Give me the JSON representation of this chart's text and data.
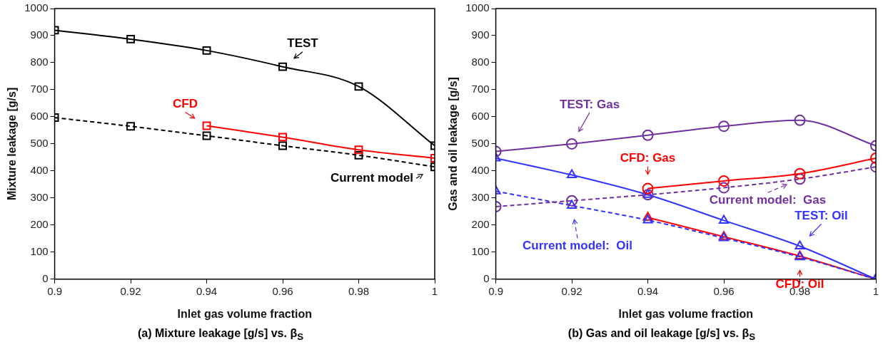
{
  "chart_data": [
    {
      "type": "line",
      "title": "(a) Mixture leakage [g/s] vs. β$_{S}$",
      "xlabel": "Inlet gas volume fraction",
      "ylabel": "Mixture leakage [g/s]",
      "xlim": [
        0.9,
        1
      ],
      "xticks": [
        0.9,
        0.92,
        0.94,
        0.96,
        0.98,
        1
      ],
      "ylim": [
        0,
        1000
      ],
      "yticks": [
        0,
        100,
        200,
        300,
        400,
        500,
        600,
        700,
        800,
        900,
        1000
      ],
      "grid": false,
      "legend": "right",
      "series": [
        {
          "name": "TEST",
          "color": "#000000",
          "x": [
            0.9,
            0.92,
            0.94,
            0.96,
            0.98,
            1
          ],
          "values": [
            920,
            887,
            845,
            785,
            712,
            493
          ],
          "marker": "square",
          "line_style": "solid"
        },
        {
          "name": "CFD",
          "color": "#ff0000",
          "x": [
            0.94,
            0.96,
            0.98,
            1
          ],
          "values": [
            567,
            525,
            478,
            447
          ],
          "marker": "square",
          "line_style": "solid"
        },
        {
          "name": "Current model",
          "color": "#000000",
          "x": [
            0.9,
            0.92,
            0.94,
            0.96,
            0.98,
            1
          ],
          "values": [
            597,
            565,
            530,
            493,
            458,
            415
          ],
          "marker": "square",
          "line_style": "dashed"
        }
      ]
    },
    {
      "type": "line",
      "title": "(b) Gas and oil leakage [g/s] vs. β$_{S}$",
      "xlabel": "Inlet gas volume fraction",
      "ylabel": "Gas and oil leakage [g/s]",
      "xlim": [
        0.9,
        1
      ],
      "xticks": [
        0.9,
        0.92,
        0.94,
        0.96,
        0.98,
        1
      ],
      "ylim": [
        0,
        1000
      ],
      "yticks": [
        0,
        100,
        200,
        300,
        400,
        500,
        600,
        700,
        800,
        900,
        1000
      ],
      "grid": false,
      "legend": "bottom right",
      "series": [
        {
          "name": "TEST: Gas",
          "color": "#7030a0",
          "x": [
            0.9,
            0.92,
            0.94,
            0.96,
            0.98,
            1
          ],
          "values": [
            472,
            500,
            532,
            565,
            587,
            493
          ],
          "marker": "circle",
          "line_style": "solid"
        },
        {
          "name": "CFD: Gas",
          "color": "#ff0000",
          "x": [
            0.94,
            0.96,
            0.98,
            1
          ],
          "values": [
            335,
            363,
            390,
            447
          ],
          "marker": "circle",
          "line_style": "solid"
        },
        {
          "name": "Current model:  Gas",
          "color": "#7030a0",
          "x": [
            0.9,
            0.92,
            0.94,
            0.96,
            0.98,
            1
          ],
          "values": [
            268,
            290,
            312,
            338,
            370,
            415
          ],
          "marker": "circle",
          "line_style": "dashed"
        },
        {
          "name": "TEST: Oil",
          "color": "#3333ff",
          "x": [
            0.9,
            0.92,
            0.94,
            0.96,
            0.98,
            1
          ],
          "values": [
            447,
            385,
            312,
            217,
            122,
            0
          ],
          "marker": "triangle",
          "line_style": "solid"
        },
        {
          "name": "Current model:  Oil",
          "color": "#3333ff",
          "x": [
            0.9,
            0.92,
            0.94,
            0.96,
            0.98,
            1
          ],
          "values": [
            325,
            272,
            218,
            152,
            82,
            0
          ],
          "marker": "triangle",
          "line_style": "dashed"
        },
        {
          "name": "CFD: Oil",
          "color": "#ff0000",
          "x": [
            0.94,
            0.96,
            0.98,
            1
          ],
          "values": [
            228,
            157,
            85,
            0
          ],
          "marker": "triangle",
          "line_style": "solid"
        }
      ]
    }
  ]
}
